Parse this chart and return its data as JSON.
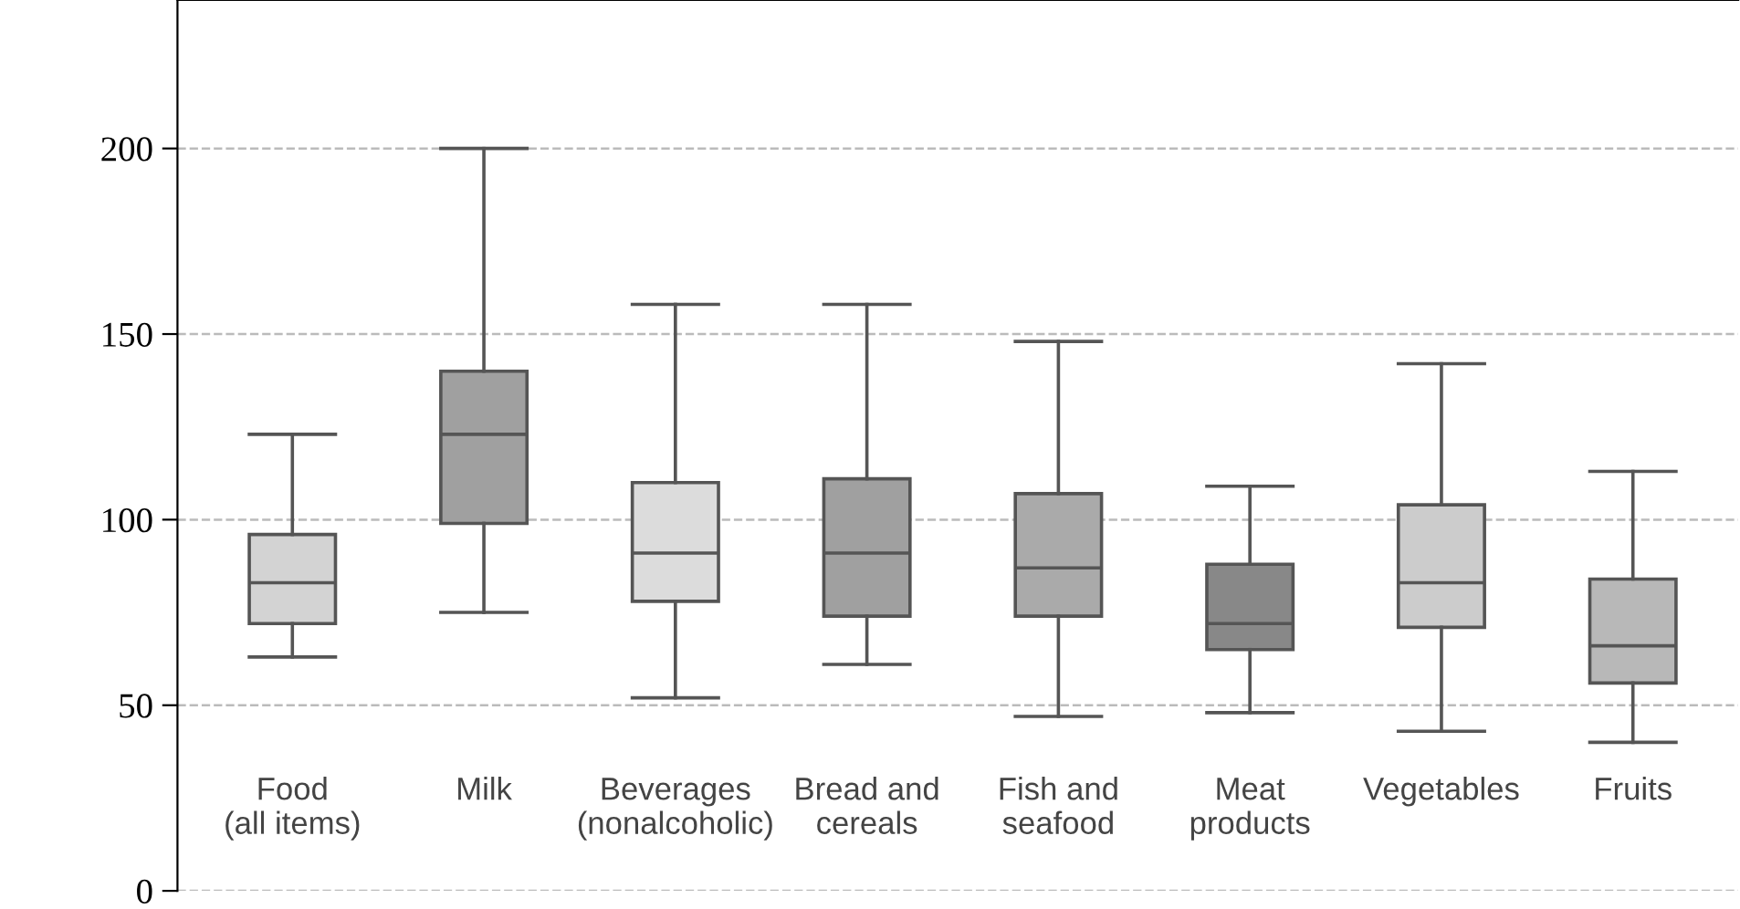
{
  "chart_data": {
    "type": "box",
    "categories": [
      "Food\n(all items)",
      "Milk",
      "Beverages\n(nonalcoholic)",
      "Bread and\ncereals",
      "Fish and\nseafood",
      "Meat\nproducts",
      "Vegetables",
      "Fruits"
    ],
    "boxes": [
      {
        "low": 63,
        "q1": 72,
        "median": 83,
        "q3": 96,
        "high": 123
      },
      {
        "low": 75,
        "q1": 99,
        "median": 123,
        "q3": 140,
        "high": 200
      },
      {
        "low": 52,
        "q1": 78,
        "median": 91,
        "q3": 110,
        "high": 158
      },
      {
        "low": 61,
        "q1": 74,
        "median": 91,
        "q3": 111,
        "high": 158
      },
      {
        "low": 47,
        "q1": 74,
        "median": 87,
        "q3": 107,
        "high": 148
      },
      {
        "low": 48,
        "q1": 65,
        "median": 72,
        "q3": 88,
        "high": 109
      },
      {
        "low": 43,
        "q1": 71,
        "median": 83,
        "q3": 104,
        "high": 142
      },
      {
        "low": 40,
        "q1": 56,
        "median": 66,
        "q3": 84,
        "high": 113
      }
    ],
    "colors": [
      "#d3d3d3",
      "#a0a0a0",
      "#dcdcdc",
      "#a0a0a0",
      "#aaaaaa",
      "#888888",
      "#cccccc",
      "#b8b8b8"
    ],
    "ylim": [
      0,
      240
    ],
    "yticks": [
      0,
      50,
      100,
      150,
      200
    ],
    "grid": "y"
  }
}
